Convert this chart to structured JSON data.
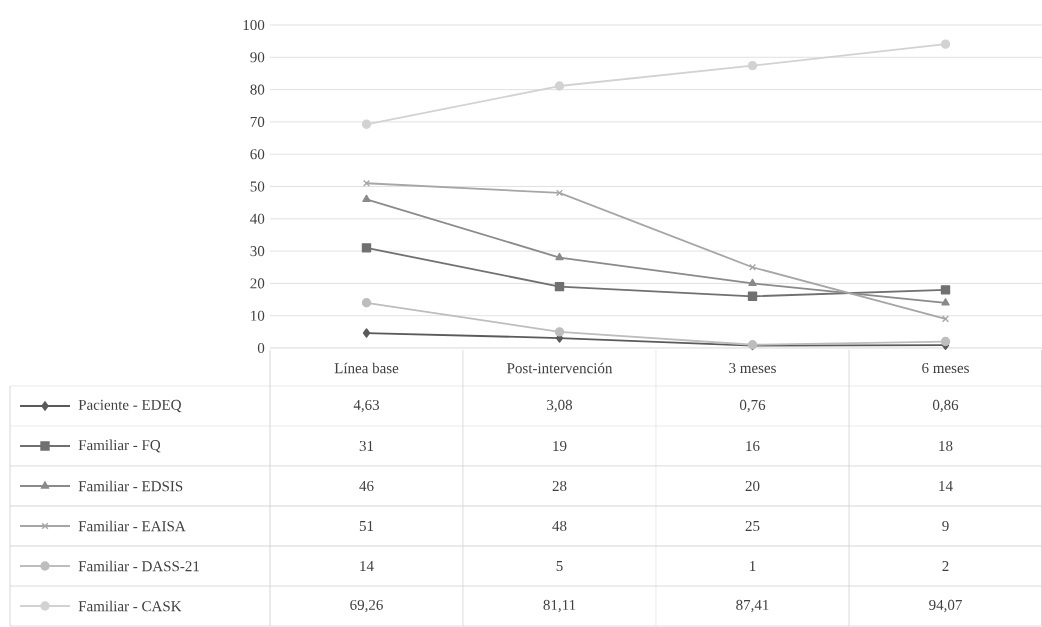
{
  "chart_data": {
    "type": "line",
    "categories": [
      "Línea base",
      "Post-intervención",
      "3 meses",
      "6 meses"
    ],
    "series": [
      {
        "name": "Paciente - EDEQ",
        "color": "#5a5a5a",
        "marker": "diamond",
        "values": [
          4.63,
          3.08,
          0.76,
          0.86
        ],
        "value_labels": [
          "4,63",
          "3,08",
          "0,76",
          "0,86"
        ]
      },
      {
        "name": "Familiar - FQ",
        "color": "#707070",
        "marker": "square",
        "values": [
          31,
          19,
          16,
          18
        ],
        "value_labels": [
          "31",
          "19",
          "16",
          "18"
        ]
      },
      {
        "name": "Familiar - EDSIS",
        "color": "#8a8a8a",
        "marker": "triangle",
        "values": [
          46,
          28,
          20,
          14
        ],
        "value_labels": [
          "46",
          "28",
          "20",
          "14"
        ]
      },
      {
        "name": "Familiar - EAISA",
        "color": "#a6a6a6",
        "marker": "cross",
        "values": [
          51,
          48,
          25,
          9
        ],
        "value_labels": [
          "51",
          "48",
          "25",
          "9"
        ]
      },
      {
        "name": "Familiar - DASS-21",
        "color": "#bdbdbd",
        "marker": "circle",
        "values": [
          14,
          5,
          1,
          2
        ],
        "value_labels": [
          "14",
          "5",
          "1",
          "2"
        ]
      },
      {
        "name": "Familiar - CASK",
        "color": "#d2d2d2",
        "marker": "circle",
        "values": [
          69.26,
          81.11,
          87.41,
          94.07
        ],
        "value_labels": [
          "69,26",
          "81,11",
          "87,41",
          "94,07"
        ]
      }
    ],
    "ylim": [
      0,
      100
    ],
    "yticks": [
      0,
      10,
      20,
      30,
      40,
      50,
      60,
      70,
      80,
      90,
      100
    ],
    "grid": "y",
    "legend": "bottom"
  }
}
